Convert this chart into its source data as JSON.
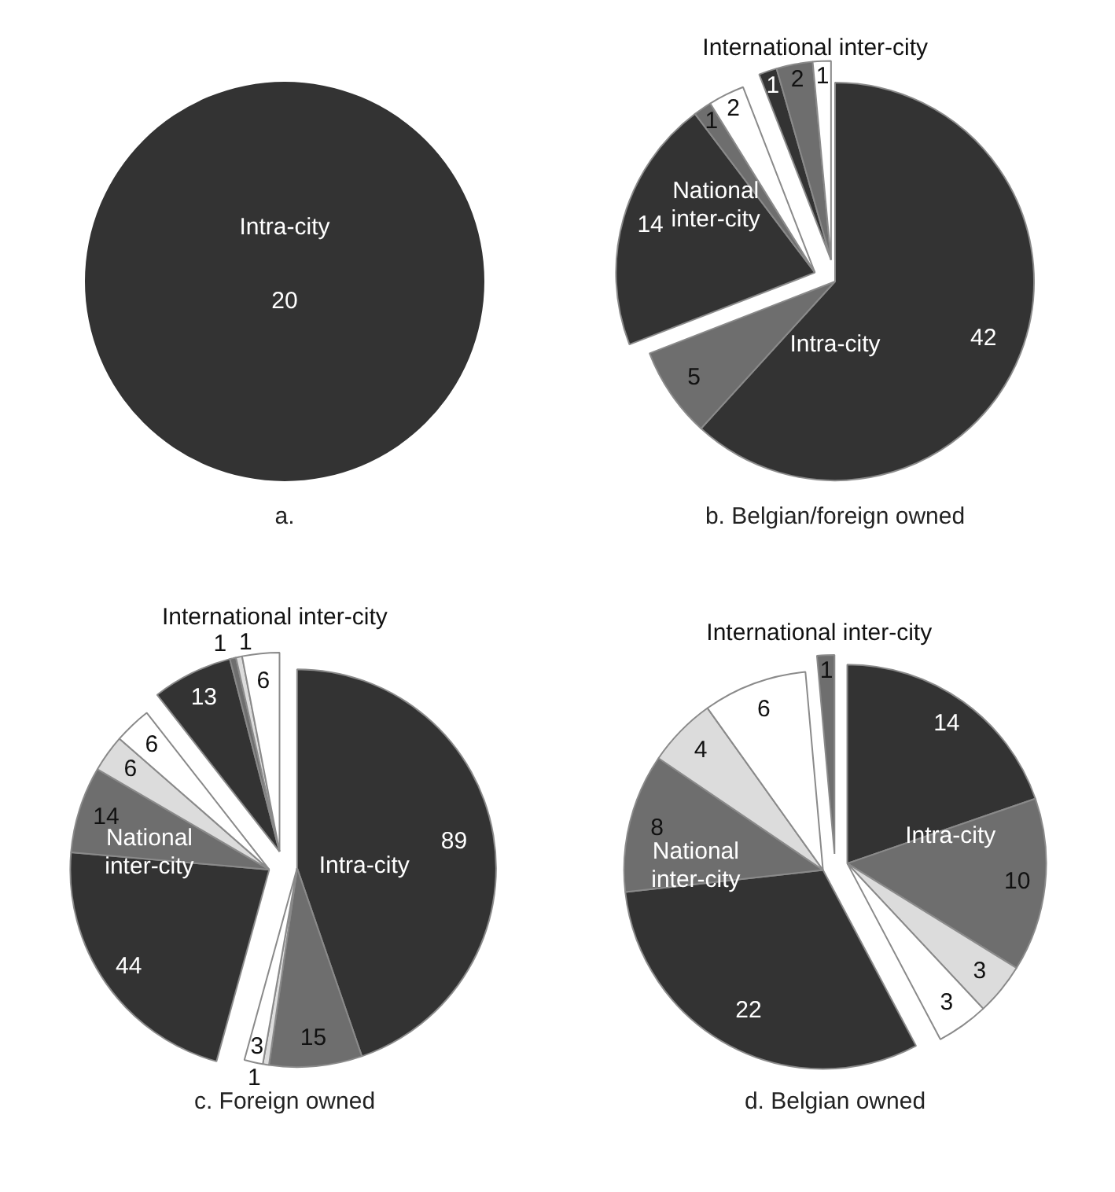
{
  "chart_data": [
    {
      "type": "pie",
      "title": "a.",
      "categories": [
        null
      ],
      "values": [
        20
      ],
      "colors": [
        "#333333"
      ],
      "data_labels": true,
      "annotations": [
        "Intra-city"
      ]
    },
    {
      "type": "pie",
      "title": "b. Belgian/foreign owned",
      "categories": [
        null,
        null,
        null,
        null,
        null,
        null,
        null,
        null
      ],
      "values": [
        42,
        5,
        14,
        1,
        2,
        1,
        2,
        1
      ],
      "colors": [
        "#333333",
        "#6e6e6e",
        "#333333",
        "#6e6e6e",
        "#ffffff",
        "#333333",
        "#6e6e6e",
        "#ffffff"
      ],
      "data_labels": true,
      "annotations": [
        "Intra-city",
        "National inter-city",
        "International inter-city"
      ]
    },
    {
      "type": "pie",
      "title": "c. Foreign owned",
      "categories": [
        null,
        null,
        null,
        null,
        null,
        null,
        null,
        null,
        null,
        null,
        null,
        null
      ],
      "values": [
        89,
        15,
        1,
        3,
        44,
        14,
        6,
        6,
        13,
        1,
        1,
        6
      ],
      "colors": [
        "#333333",
        "#6e6e6e",
        "#dcdcdc",
        "#ffffff",
        "#333333",
        "#6e6e6e",
        "#dcdcdc",
        "#ffffff",
        "#333333",
        "#6e6e6e",
        "#dcdcdc",
        "#ffffff"
      ],
      "data_labels": true,
      "annotations": [
        "Intra-city",
        "National inter-city",
        "International inter-city"
      ]
    },
    {
      "type": "pie",
      "title": "d. Belgian owned",
      "categories": [
        null,
        null,
        null,
        null,
        null,
        null,
        null,
        null,
        null
      ],
      "values": [
        14,
        10,
        3,
        3,
        22,
        8,
        4,
        6,
        1
      ],
      "colors": [
        "#333333",
        "#6e6e6e",
        "#dcdcdc",
        "#ffffff",
        "#333333",
        "#6e6e6e",
        "#dcdcdc",
        "#ffffff",
        "#6e6e6e"
      ],
      "data_labels": true,
      "annotations": [
        "Intra-city",
        "National inter-city",
        "International inter-city"
      ]
    }
  ]
}
